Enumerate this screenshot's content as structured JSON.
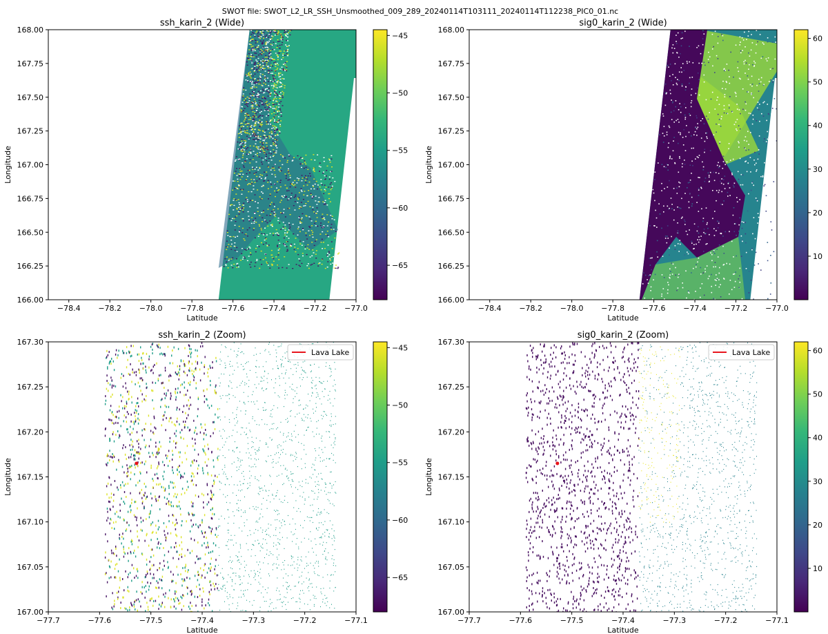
{
  "suptitle": "SWOT file: SWOT_L2_LR_SSH_Unsmoothed_009_289_20240114T103111_20240114T112238_PIC0_01.nc",
  "colormap": [
    "#440154",
    "#482878",
    "#3e4989",
    "#31688e",
    "#26828e",
    "#1f9e89",
    "#35b779",
    "#6ece58",
    "#b5de2b",
    "#fde725"
  ],
  "colors": {
    "lava_lake": "#e8141b"
  },
  "chart_data": [
    {
      "type": "heatmap",
      "title": "ssh_karin_2 (Wide)",
      "xlabel": "Latitude",
      "ylabel": "Longitude",
      "xlim": [
        -78.5,
        -77.0
      ],
      "ylim": [
        166.0,
        168.0
      ],
      "xticks": [
        "−78.4",
        "−78.2",
        "−78.0",
        "−77.8",
        "−77.6",
        "−77.4",
        "−77.2",
        "−77.0"
      ],
      "yticks": [
        "166.00",
        "166.25",
        "166.50",
        "166.75",
        "167.00",
        "167.25",
        "167.50",
        "167.75",
        "168.00"
      ],
      "colorbar": {
        "range": [
          -68,
          -44.5
        ],
        "ticks": [
          "−45",
          "−50",
          "−55",
          "−60",
          "−65"
        ]
      },
      "swath": {
        "lat_min": -77.67,
        "lat_max": -77.0,
        "gap": [
          -77.13,
          -77.01
        ]
      },
      "background_value": -54,
      "legend": null
    },
    {
      "type": "heatmap",
      "title": "sig0_karin_2 (Wide)",
      "xlabel": "Latitude",
      "ylabel": "Longitude",
      "xlim": [
        -78.5,
        -77.0
      ],
      "ylim": [
        166.0,
        168.0
      ],
      "xticks": [
        "−78.4",
        "−78.2",
        "−78.0",
        "−77.8",
        "−77.6",
        "−77.4",
        "−77.2",
        "−77.0"
      ],
      "yticks": [
        "166.00",
        "166.25",
        "166.50",
        "166.75",
        "167.00",
        "167.25",
        "167.50",
        "167.75",
        "168.00"
      ],
      "colorbar": {
        "range": [
          0,
          62
        ],
        "ticks": [
          "60",
          "50",
          "40",
          "30",
          "20",
          "10"
        ]
      },
      "swath": {
        "lat_min": -77.67,
        "lat_max": -77.0,
        "gap": [
          -77.13,
          -77.01
        ]
      },
      "background_value": 28,
      "legend": null
    },
    {
      "type": "scatter",
      "title": "ssh_karin_2 (Zoom)",
      "xlabel": "Latitude",
      "ylabel": "Longitude",
      "xlim": [
        -77.7,
        -77.1
      ],
      "ylim": [
        167.0,
        167.3
      ],
      "xticks": [
        "−77.7",
        "−77.6",
        "−77.5",
        "−77.4",
        "−77.3",
        "−77.2",
        "−77.1"
      ],
      "yticks": [
        "167.00",
        "167.05",
        "167.10",
        "167.15",
        "167.20",
        "167.25",
        "167.30"
      ],
      "colorbar": {
        "range": [
          -68,
          -44.5
        ],
        "ticks": [
          "−45",
          "−50",
          "−55",
          "−60",
          "−65"
        ]
      },
      "legend": {
        "label": "Lava Lake",
        "position": "top-right"
      },
      "lava_lake": {
        "x": -77.528,
        "y": 167.165
      }
    },
    {
      "type": "scatter",
      "title": "sig0_karin_2 (Zoom)",
      "xlabel": "Latitude",
      "ylabel": "Longitude",
      "xlim": [
        -77.7,
        -77.1
      ],
      "ylim": [
        167.0,
        167.3
      ],
      "xticks": [
        "−77.7",
        "−77.6",
        "−77.5",
        "−77.4",
        "−77.3",
        "−77.2",
        "−77.1"
      ],
      "yticks": [
        "167.00",
        "167.05",
        "167.10",
        "167.15",
        "167.20",
        "167.25",
        "167.30"
      ],
      "colorbar": {
        "range": [
          0,
          62
        ],
        "ticks": [
          "60",
          "50",
          "40",
          "30",
          "20",
          "10"
        ]
      },
      "legend": {
        "label": "Lava Lake",
        "position": "top-right"
      },
      "lava_lake": {
        "x": -77.528,
        "y": 167.165
      }
    }
  ]
}
